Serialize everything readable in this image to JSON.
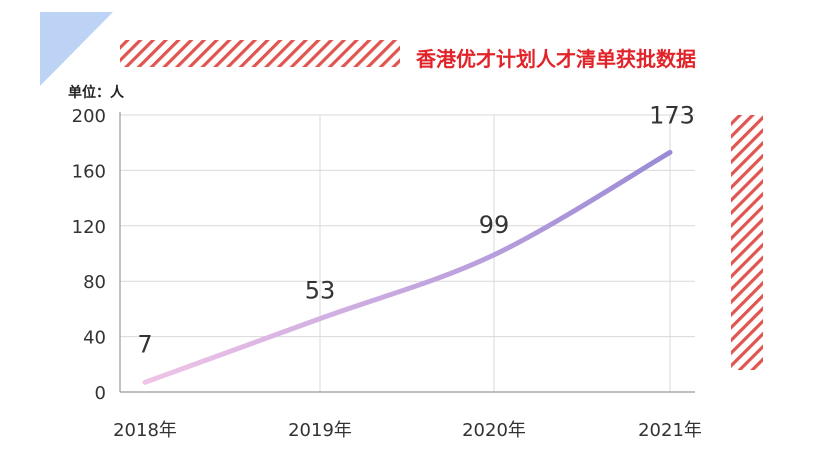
{
  "chart_data": {
    "type": "line",
    "title": "香港优才计划人才清单获批数据",
    "unit_label": "单位：人",
    "categories": [
      "2018年",
      "2019年",
      "2020年",
      "2021年"
    ],
    "values": [
      7,
      53,
      99,
      173
    ],
    "data_labels": [
      "7",
      "53",
      "99",
      "173"
    ],
    "ylim": [
      0,
      200
    ],
    "yticks": [
      0,
      40,
      80,
      120,
      160,
      200
    ],
    "ytick_labels": [
      "0",
      "40",
      "80",
      "120",
      "160",
      "200"
    ],
    "grid": true,
    "line_color_start": "#f0c4e8",
    "line_color_end": "#9a8ad6"
  },
  "decor": {
    "corner_triangle_color": "#bcd3f5",
    "hatch_color": "#e0554f",
    "title_color": "#e0242a"
  }
}
